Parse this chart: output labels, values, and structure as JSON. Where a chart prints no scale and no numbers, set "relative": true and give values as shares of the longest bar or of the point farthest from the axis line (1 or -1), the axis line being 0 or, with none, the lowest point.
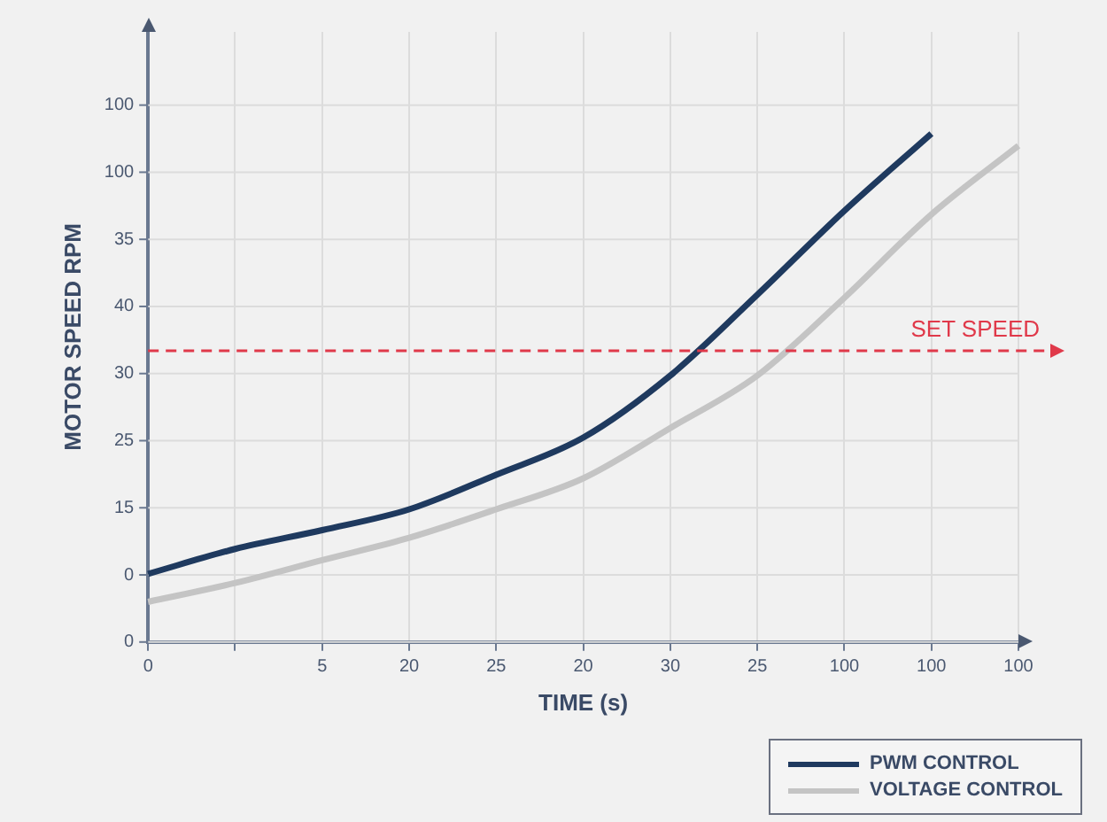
{
  "chart_data": {
    "type": "line",
    "xlabel": "TIME (s)",
    "ylabel": "MOTOR SPEED RPM",
    "relative": true,
    "categories": [
      "0",
      null,
      "5",
      "20",
      "25",
      "20",
      "30",
      "25",
      "100",
      "100",
      "100"
    ],
    "series": [
      {
        "name": "PWM CONTROL",
        "color": "#1f3a5f",
        "values": [
          0.134,
          0.183,
          0.22,
          0.261,
          0.329,
          0.402,
          0.524,
          0.683,
          0.848,
          1,
          null
        ]
      },
      {
        "name": "VOLTAGE CONTROL",
        "color": "#c4c4c4",
        "values": [
          0.079,
          0.116,
          0.161,
          0.205,
          0.261,
          0.322,
          0.421,
          0.524,
          0.677,
          0.841,
          0.976
        ]
      }
    ],
    "annotations": [
      "0",
      "0",
      "15",
      "25",
      "30",
      "40",
      "35",
      "100",
      "100"
    ],
    "ref_lines": [
      {
        "axis": "y",
        "value": 0.573,
        "label": "SET SPEED",
        "color": "#e0394a",
        "line_style": "dashed"
      }
    ],
    "grid": true,
    "legend": "bottom right",
    "line_style": "solid"
  }
}
